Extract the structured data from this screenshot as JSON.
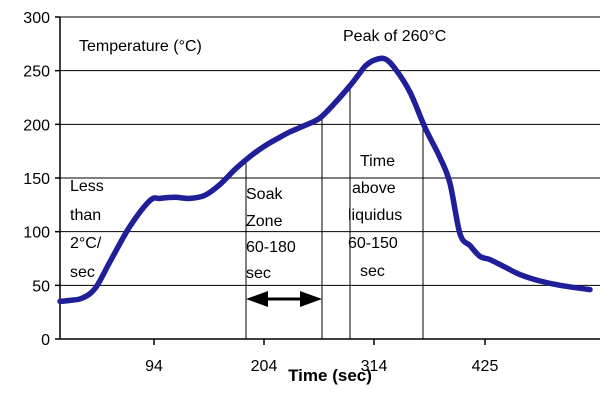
{
  "chart_data": {
    "type": "line",
    "title": "",
    "xlabel": "Time (sec)",
    "ylabel": "Temperature (°C)",
    "xlim": [
      0,
      540
    ],
    "ylim": [
      0,
      300
    ],
    "xticks": [
      94,
      204,
      314,
      425
    ],
    "yticks": [
      0,
      50,
      100,
      150,
      200,
      250,
      300
    ],
    "grid": "horizontal",
    "legend": "none",
    "line_color": "#1f1f99",
    "series": [
      {
        "x": [
          0,
          10,
          22,
          35,
          50,
          70,
          90,
          100,
          115,
          130,
          145,
          160,
          175,
          190,
          205,
          220,
          230,
          245,
          260,
          275,
          290,
          300,
          306,
          315,
          325,
          335,
          350,
          365,
          380,
          390,
          400,
          410,
          420,
          430,
          445,
          460,
          480,
          500,
          530
        ],
        "y": [
          35,
          36,
          38,
          47,
          72,
          105,
          129,
          131,
          132,
          131,
          134,
          144,
          158,
          170,
          180,
          188,
          193,
          199,
          206,
          220,
          236,
          248,
          255,
          260,
          261,
          252,
          230,
          197,
          169,
          145,
          98,
          87,
          77,
          74,
          67,
          60,
          54,
          50,
          46
        ]
      }
    ],
    "annotations": {
      "peak": "Peak of 260°C",
      "ramp": [
        "Less",
        "than",
        "2°C/",
        "sec"
      ],
      "soak": [
        "Soak",
        "Zone",
        "60-180",
        "sec"
      ],
      "liquidus": [
        "Time",
        "above",
        "liquidus",
        "60-150",
        "sec"
      ]
    },
    "vlines": [
      186,
      262,
      290,
      363
    ],
    "soak_arrow": [
      186,
      262
    ]
  }
}
